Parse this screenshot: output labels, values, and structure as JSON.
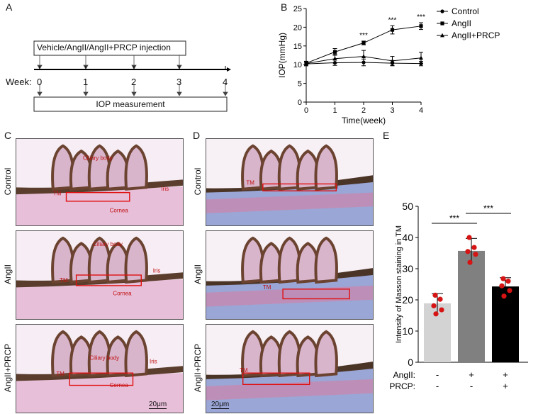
{
  "panels": {
    "A": "A",
    "B": "B",
    "C": "C",
    "D": "D",
    "E": "E"
  },
  "panelA": {
    "injection_label": "Vehicle/AngII/AngII+PRCP injection",
    "week_label": "Week:",
    "weeks": [
      "0",
      "1",
      "2",
      "3",
      "4"
    ],
    "measurement_label": "IOP measurement"
  },
  "panelB": {
    "chart_data": {
      "type": "line",
      "ylabel": "IOP(mmHg)",
      "xlabel": "Time(week)",
      "x": [
        0,
        1,
        2,
        3,
        4
      ],
      "xticks": [
        "0",
        "1",
        "2",
        "3",
        "4"
      ],
      "yticks": [
        "0",
        "5",
        "10",
        "15",
        "20",
        "25"
      ],
      "ylim": [
        0,
        25
      ],
      "xlim": [
        0,
        4
      ],
      "series": [
        {
          "name": "Control",
          "marker": "circle",
          "values": [
            10.2,
            10.5,
            10.6,
            10.4,
            10.3
          ],
          "err": [
            0.5,
            0.7,
            0.9,
            0.7,
            0.6
          ]
        },
        {
          "name": "AngII",
          "marker": "square",
          "values": [
            10.4,
            13.4,
            15.8,
            19.3,
            20.3
          ],
          "err": [
            0.5,
            0.9,
            0.5,
            1.1,
            0.9
          ]
        },
        {
          "name": "AngII+PRCP",
          "marker": "triangle",
          "values": [
            10.3,
            11.6,
            12.2,
            11.0,
            11.8
          ],
          "err": [
            0.6,
            1.2,
            1.6,
            1.2,
            1.5
          ]
        }
      ],
      "annotations": [
        {
          "x": 2,
          "text": "***"
        },
        {
          "x": 3,
          "text": "***"
        },
        {
          "x": 4,
          "text": "***"
        }
      ]
    }
  },
  "panelC": {
    "rows": [
      {
        "side_label": "Control",
        "labels": [
          "Ciliary body",
          "Iris",
          "TM",
          "Cornea"
        ]
      },
      {
        "side_label": "AngII",
        "labels": [
          "Ciliary body",
          "Iris",
          "TM",
          "Cornea"
        ]
      },
      {
        "side_label": "AngII+PRCP",
        "labels": [
          "Ciliary body",
          "Iris",
          "TM",
          "Cornea"
        ]
      }
    ],
    "scale_bar": "20μm"
  },
  "panelD": {
    "rows": [
      {
        "side_label": "Control",
        "labels": [
          "TM"
        ]
      },
      {
        "side_label": "AngII",
        "labels": [
          "TM"
        ]
      },
      {
        "side_label": "AngII+PRCP",
        "labels": [
          "TM"
        ]
      }
    ],
    "scale_bar": "20μm"
  },
  "panelE": {
    "chart_data": {
      "type": "bar",
      "ylabel": "Intensity of Masson staining in TM",
      "yticks": [
        "0",
        "10",
        "20",
        "30",
        "40",
        "50"
      ],
      "ylim": [
        0,
        50
      ],
      "bars": [
        {
          "value": 18.9,
          "err": 3.1,
          "color": "#d3d3d3",
          "points": [
            21.5,
            20.2,
            18.1,
            16.8,
            15.5
          ]
        },
        {
          "value": 35.7,
          "err": 4.0,
          "color": "#808080",
          "points": [
            40.0,
            36.8,
            35.5,
            34.6,
            32.0
          ]
        },
        {
          "value": 24.3,
          "err": 2.8,
          "color": "#000000",
          "points": [
            26.8,
            26.0,
            24.5,
            23.0,
            21.2
          ]
        }
      ],
      "points_color": "#d61414",
      "significance": [
        {
          "from": 0,
          "to": 1,
          "text": "***"
        },
        {
          "from": 1,
          "to": 2,
          "text": "***"
        }
      ],
      "group_rows": [
        {
          "label": "AngII:",
          "signs": [
            "-",
            "+",
            "+"
          ]
        },
        {
          "label": "PRCP:",
          "signs": [
            "-",
            "-",
            "+"
          ]
        }
      ]
    }
  }
}
